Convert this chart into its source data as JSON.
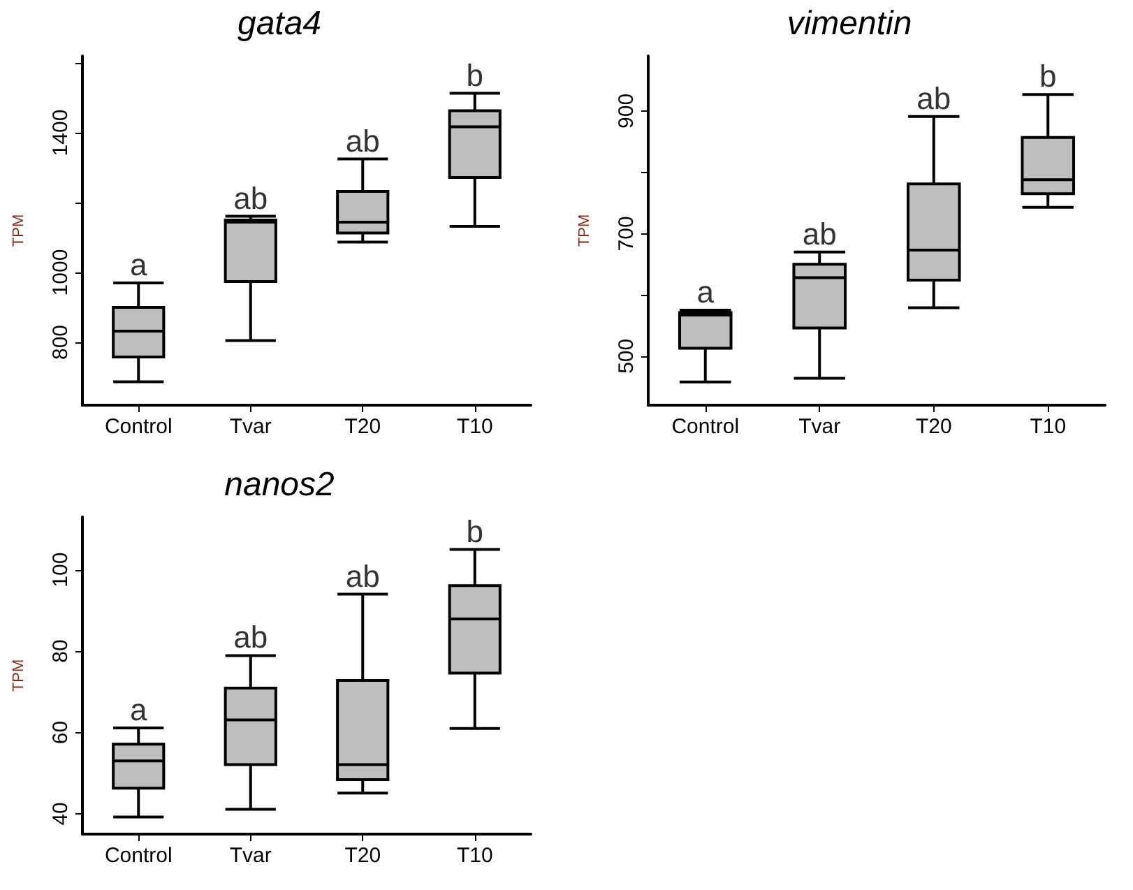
{
  "chart_data": [
    {
      "type": "box",
      "title": "gata4",
      "ylabel": "TPM",
      "categories": [
        "Control",
        "Tvar",
        "T20",
        "T10"
      ],
      "color": "#bebebe",
      "ylim": [
        620,
        1620
      ],
      "yticks": [
        800,
        1000,
        {
          "value": 1200,
          "label": null
        },
        1400,
        {
          "value": 1600,
          "label": null
        }
      ],
      "grid": false,
      "boxes": [
        {
          "low": 687,
          "q1": 758,
          "median": 832,
          "q3": 900,
          "high": 970
        },
        {
          "low": 805,
          "q1": 974,
          "median": 1144,
          "q3": 1150,
          "high": 1161
        },
        {
          "low": 1087,
          "q1": 1113,
          "median": 1144,
          "q3": 1232,
          "high": 1325
        },
        {
          "low": 1132,
          "q1": 1272,
          "median": 1417,
          "q3": 1463,
          "high": 1513
        }
      ],
      "annotations": [
        "a",
        "ab",
        "ab",
        "b"
      ]
    },
    {
      "type": "box",
      "title": "vimentin",
      "ylabel": "TPM",
      "categories": [
        "Control",
        "Tvar",
        "T20",
        "T10"
      ],
      "color": "#bebebe",
      "ylim": [
        420,
        990
      ],
      "yticks": [
        500,
        {
          "value": 600,
          "label": null
        },
        700,
        {
          "value": 800,
          "label": null
        },
        900
      ],
      "grid": false,
      "boxes": [
        {
          "low": 458,
          "q1": 513,
          "median": 567,
          "q3": 571,
          "high": 575
        },
        {
          "low": 464,
          "q1": 546,
          "median": 628,
          "q3": 650,
          "high": 670
        },
        {
          "low": 579,
          "q1": 624,
          "median": 673,
          "q3": 781,
          "high": 891
        },
        {
          "low": 743,
          "q1": 765,
          "median": 788,
          "q3": 857,
          "high": 927
        }
      ],
      "annotations": [
        "a",
        "ab",
        "ab",
        "b"
      ]
    },
    {
      "type": "box",
      "title": "nanos2",
      "ylabel": "TPM",
      "categories": [
        "Control",
        "Tvar",
        "T20",
        "T10"
      ],
      "color": "#bebebe",
      "ylim": [
        35,
        113
      ],
      "yticks": [
        40,
        60,
        80,
        100
      ],
      "grid": false,
      "boxes": [
        {
          "low": 39.2,
          "q1": 46.3,
          "median": 53,
          "q3": 57.1,
          "high": 61.1
        },
        {
          "low": 41.1,
          "q1": 52.1,
          "median": 63.1,
          "q3": 70.9,
          "high": 78.9
        },
        {
          "low": 45.1,
          "q1": 48.4,
          "median": 52.1,
          "q3": 72.8,
          "high": 94.0
        },
        {
          "low": 61,
          "q1": 74.6,
          "median": 87.9,
          "q3": 96.1,
          "high": 105
        }
      ],
      "annotations": [
        "a",
        "ab",
        "ab",
        "b"
      ]
    }
  ]
}
